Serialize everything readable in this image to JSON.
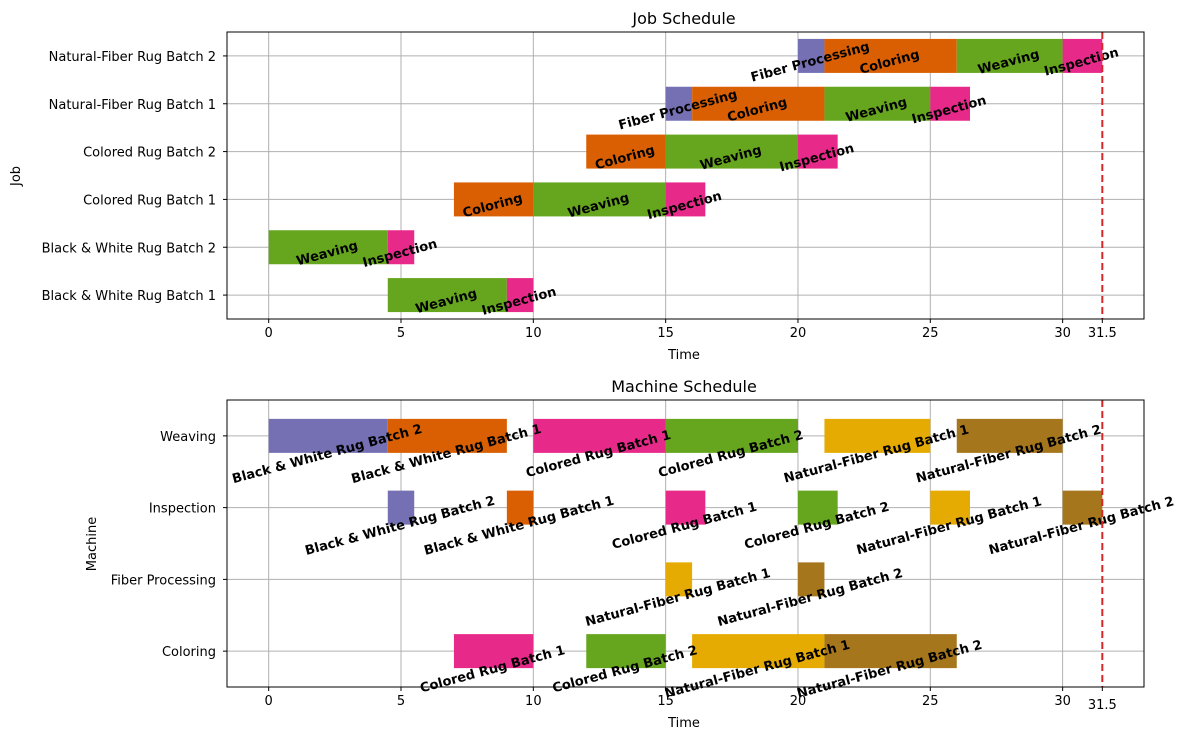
{
  "chart_data": [
    {
      "type": "gantt",
      "title": "Job Schedule",
      "xlabel": "Time",
      "ylabel": "Job",
      "xlim": [
        -1.575,
        33.075
      ],
      "xticks": [
        0,
        5,
        10,
        15,
        20,
        25,
        30
      ],
      "extra_xtick": "31.5",
      "makespan": 31.5,
      "grid": true,
      "categories": [
        "Natural-Fiber Rug Batch 2",
        "Natural-Fiber Rug Batch 1",
        "Colored Rug Batch 2",
        "Colored Rug Batch 1",
        "Black & White Rug Batch 2",
        "Black & White Rug Batch 1"
      ],
      "bars": [
        {
          "row": "Natural-Fiber Rug Batch 2",
          "start": 20,
          "end": 21,
          "label": "Fiber Processing",
          "color": "#7570b3"
        },
        {
          "row": "Natural-Fiber Rug Batch 2",
          "start": 21,
          "end": 26,
          "label": "Coloring",
          "color": "#d95f02"
        },
        {
          "row": "Natural-Fiber Rug Batch 2",
          "start": 26,
          "end": 30,
          "label": "Weaving",
          "color": "#66a61e"
        },
        {
          "row": "Natural-Fiber Rug Batch 2",
          "start": 30,
          "end": 31.5,
          "label": "Inspection",
          "color": "#e7298a"
        },
        {
          "row": "Natural-Fiber Rug Batch 1",
          "start": 15,
          "end": 16,
          "label": "Fiber Processing",
          "color": "#7570b3"
        },
        {
          "row": "Natural-Fiber Rug Batch 1",
          "start": 16,
          "end": 21,
          "label": "Coloring",
          "color": "#d95f02"
        },
        {
          "row": "Natural-Fiber Rug Batch 1",
          "start": 21,
          "end": 25,
          "label": "Weaving",
          "color": "#66a61e"
        },
        {
          "row": "Natural-Fiber Rug Batch 1",
          "start": 25,
          "end": 26.5,
          "label": "Inspection",
          "color": "#e7298a"
        },
        {
          "row": "Colored Rug Batch 2",
          "start": 12,
          "end": 15,
          "label": "Coloring",
          "color": "#d95f02"
        },
        {
          "row": "Colored Rug Batch 2",
          "start": 15,
          "end": 20,
          "label": "Weaving",
          "color": "#66a61e"
        },
        {
          "row": "Colored Rug Batch 2",
          "start": 20,
          "end": 21.5,
          "label": "Inspection",
          "color": "#e7298a"
        },
        {
          "row": "Colored Rug Batch 1",
          "start": 7,
          "end": 10,
          "label": "Coloring",
          "color": "#d95f02"
        },
        {
          "row": "Colored Rug Batch 1",
          "start": 10,
          "end": 15,
          "label": "Weaving",
          "color": "#66a61e"
        },
        {
          "row": "Colored Rug Batch 1",
          "start": 15,
          "end": 16.5,
          "label": "Inspection",
          "color": "#e7298a"
        },
        {
          "row": "Black & White Rug Batch 2",
          "start": 0,
          "end": 4.5,
          "label": "Weaving",
          "color": "#66a61e"
        },
        {
          "row": "Black & White Rug Batch 2",
          "start": 4.5,
          "end": 5.5,
          "label": "Inspection",
          "color": "#e7298a"
        },
        {
          "row": "Black & White Rug Batch 1",
          "start": 4.5,
          "end": 9,
          "label": "Weaving",
          "color": "#66a61e"
        },
        {
          "row": "Black & White Rug Batch 1",
          "start": 9,
          "end": 10,
          "label": "Inspection",
          "color": "#e7298a"
        }
      ]
    },
    {
      "type": "gantt",
      "title": "Machine Schedule",
      "xlabel": "Time",
      "ylabel": "Machine",
      "xlim": [
        -1.575,
        33.075
      ],
      "xticks": [
        0,
        5,
        10,
        15,
        20,
        25,
        30
      ],
      "extra_xtick": "31.5",
      "makespan": 31.5,
      "grid": true,
      "categories": [
        "Weaving",
        "Inspection",
        "Fiber Processing",
        "Coloring"
      ],
      "bars": [
        {
          "row": "Weaving",
          "start": 0,
          "end": 4.5,
          "label": "Black & White Rug Batch 2",
          "color": "#7570b3"
        },
        {
          "row": "Weaving",
          "start": 4.5,
          "end": 9,
          "label": "Black & White Rug Batch 1",
          "color": "#d95f02"
        },
        {
          "row": "Weaving",
          "start": 10,
          "end": 15,
          "label": "Colored Rug Batch 1",
          "color": "#e7298a"
        },
        {
          "row": "Weaving",
          "start": 15,
          "end": 20,
          "label": "Colored Rug Batch 2",
          "color": "#66a61e"
        },
        {
          "row": "Weaving",
          "start": 21,
          "end": 25,
          "label": "Natural-Fiber Rug Batch 1",
          "color": "#e6ab02"
        },
        {
          "row": "Weaving",
          "start": 26,
          "end": 30,
          "label": "Natural-Fiber Rug Batch 2",
          "color": "#a6761d"
        },
        {
          "row": "Inspection",
          "start": 4.5,
          "end": 5.5,
          "label": "Black & White Rug Batch 2",
          "color": "#7570b3"
        },
        {
          "row": "Inspection",
          "start": 9,
          "end": 10,
          "label": "Black & White Rug Batch 1",
          "color": "#d95f02"
        },
        {
          "row": "Inspection",
          "start": 15,
          "end": 16.5,
          "label": "Colored Rug Batch 1",
          "color": "#e7298a"
        },
        {
          "row": "Inspection",
          "start": 20,
          "end": 21.5,
          "label": "Colored Rug Batch 2",
          "color": "#66a61e"
        },
        {
          "row": "Inspection",
          "start": 25,
          "end": 26.5,
          "label": "Natural-Fiber Rug Batch 1",
          "color": "#e6ab02"
        },
        {
          "row": "Inspection",
          "start": 30,
          "end": 31.5,
          "label": "Natural-Fiber Rug Batch 2",
          "color": "#a6761d"
        },
        {
          "row": "Fiber Processing",
          "start": 15,
          "end": 16,
          "label": "Natural-Fiber Rug Batch 1",
          "color": "#e6ab02"
        },
        {
          "row": "Fiber Processing",
          "start": 20,
          "end": 21,
          "label": "Natural-Fiber Rug Batch 2",
          "color": "#a6761d"
        },
        {
          "row": "Coloring",
          "start": 7,
          "end": 10,
          "label": "Colored Rug Batch 1",
          "color": "#e7298a"
        },
        {
          "row": "Coloring",
          "start": 12,
          "end": 15,
          "label": "Colored Rug Batch 2",
          "color": "#66a61e"
        },
        {
          "row": "Coloring",
          "start": 16,
          "end": 21,
          "label": "Natural-Fiber Rug Batch 1",
          "color": "#e6ab02"
        },
        {
          "row": "Coloring",
          "start": 21,
          "end": 26,
          "label": "Natural-Fiber Rug Batch 2",
          "color": "#a6761d"
        }
      ]
    }
  ]
}
